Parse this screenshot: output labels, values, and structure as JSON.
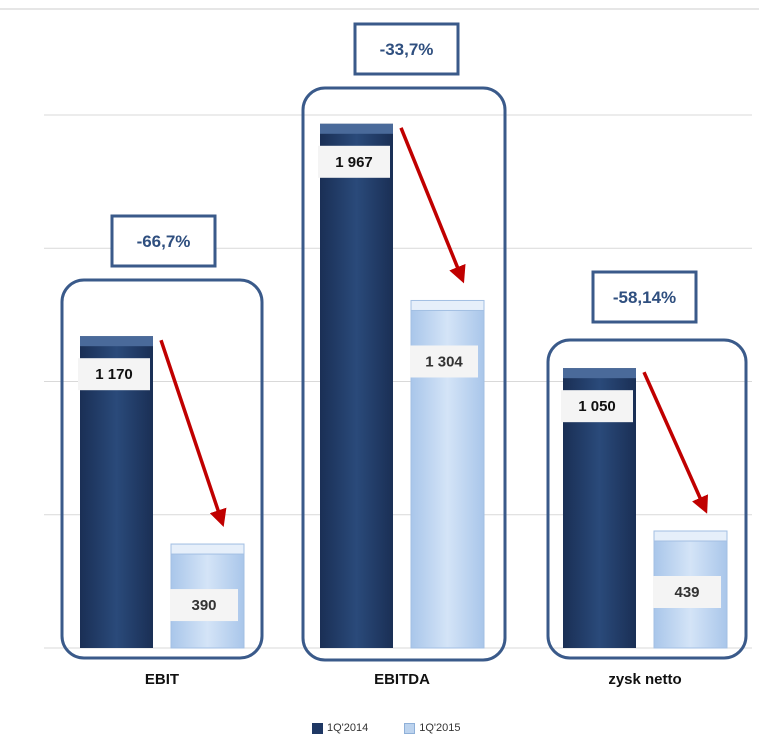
{
  "chart_data": {
    "type": "bar",
    "categories": [
      "EBIT",
      "EBITDA",
      "zysk netto"
    ],
    "series": [
      {
        "name": "1Q'2014",
        "values": [
          1170,
          1967,
          1050
        ],
        "value_labels": [
          "1 170",
          "1 967",
          "1 050"
        ],
        "color": "#1f3864"
      },
      {
        "name": "1Q'2015",
        "values": [
          390,
          1304,
          439
        ],
        "value_labels": [
          "390",
          "1 304",
          "439"
        ],
        "color": "#bcd3ee"
      }
    ],
    "changes": [
      "-66,7%",
      "-33,7%",
      "-58,14%"
    ],
    "ylim": [
      0,
      2000
    ],
    "grid": true,
    "legend_position": "bottom",
    "colors": {
      "frame": "#3a5a8a",
      "change_text": "#2f4f7f",
      "arrow": "#c00000",
      "grid": "#d9d9d9"
    }
  }
}
